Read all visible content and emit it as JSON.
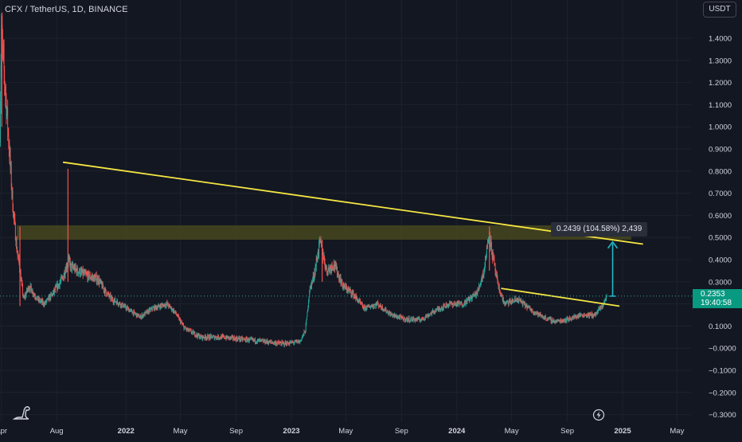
{
  "header": {
    "title": "CFX / TetherUS, 1D, BINANCE",
    "currency_label": "USDT"
  },
  "price_tag": {
    "price": "0.2353",
    "countdown": "19:40:58"
  },
  "measure_label": "0.2439 (104.58%) 2,439",
  "colors": {
    "background": "#131722",
    "up": "#26a69a",
    "down": "#ef5350",
    "trendline": "#f5e642",
    "zone_fill": "#4a4a1e",
    "measure": "#22b8c4",
    "grid": "#1e222d",
    "axis_text": "#d1d4dc"
  },
  "icons": {
    "logo": "dinosaur-logo-icon",
    "replay": "lightning-replay-icon"
  },
  "chart_data": {
    "type": "candlestick",
    "title": "CFX / TetherUS, 1D, BINANCE",
    "interval": "1D",
    "y_axis_position": "right",
    "ylim": [
      -0.33,
      1.5
    ],
    "y_ticks": [
      1.4,
      1.3,
      1.2,
      1.1,
      1.0,
      0.9,
      0.8,
      0.7,
      0.6,
      0.5,
      0.4,
      0.3,
      0.2,
      0.1,
      -0.0,
      -0.1,
      -0.2,
      -0.3
    ],
    "y_tick_labels": [
      "1.4000",
      "1.3000",
      "1.2000",
      "1.1000",
      "1.0000",
      "0.9000",
      "0.8000",
      "0.7000",
      "0.6000",
      "0.5000",
      "0.4000",
      "0.3000",
      "0.2000",
      "0.1000",
      "−0.0000",
      "−0.1000",
      "−0.2000",
      "−0.3000"
    ],
    "x_ticks": [
      {
        "label": "Apr",
        "date": "2021-04-01",
        "bold": false
      },
      {
        "label": "Aug",
        "date": "2021-08-01",
        "bold": false
      },
      {
        "label": "2022",
        "date": "2022-01-01",
        "bold": true
      },
      {
        "label": "May",
        "date": "2022-05-01",
        "bold": false
      },
      {
        "label": "Sep",
        "date": "2022-09-01",
        "bold": false
      },
      {
        "label": "2023",
        "date": "2023-01-01",
        "bold": true
      },
      {
        "label": "May",
        "date": "2023-05-01",
        "bold": false
      },
      {
        "label": "Sep",
        "date": "2023-09-01",
        "bold": false
      },
      {
        "label": "2024",
        "date": "2024-01-01",
        "bold": true
      },
      {
        "label": "May",
        "date": "2024-05-01",
        "bold": false
      },
      {
        "label": "Sep",
        "date": "2024-09-01",
        "bold": false
      },
      {
        "label": "2025",
        "date": "2025-01-01",
        "bold": true
      },
      {
        "label": "May",
        "date": "2025-05-01",
        "bold": false
      }
    ],
    "x_range": [
      "2021-03-29",
      "2025-06-01"
    ],
    "price_path": [
      [
        "2021-03-29",
        1.0
      ],
      [
        "2021-04-01",
        1.45
      ],
      [
        "2021-04-05",
        1.3
      ],
      [
        "2021-04-12",
        1.1
      ],
      [
        "2021-04-20",
        0.85
      ],
      [
        "2021-04-26",
        0.65
      ],
      [
        "2021-05-05",
        0.45
      ],
      [
        "2021-05-12",
        0.35
      ],
      [
        "2021-05-20",
        0.22
      ],
      [
        "2021-06-01",
        0.28
      ],
      [
        "2021-06-20",
        0.22
      ],
      [
        "2021-07-05",
        0.2
      ],
      [
        "2021-07-25",
        0.25
      ],
      [
        "2021-08-15",
        0.32
      ],
      [
        "2021-08-27",
        0.4
      ],
      [
        "2021-09-01",
        0.37
      ],
      [
        "2021-09-15",
        0.35
      ],
      [
        "2021-10-05",
        0.33
      ],
      [
        "2021-11-01",
        0.31
      ],
      [
        "2021-11-15",
        0.26
      ],
      [
        "2021-12-01",
        0.22
      ],
      [
        "2021-12-20",
        0.2
      ],
      [
        "2022-01-10",
        0.17
      ],
      [
        "2022-02-01",
        0.14
      ],
      [
        "2022-03-01",
        0.18
      ],
      [
        "2022-04-01",
        0.2
      ],
      [
        "2022-04-20",
        0.16
      ],
      [
        "2022-05-10",
        0.09
      ],
      [
        "2022-06-15",
        0.05
      ],
      [
        "2022-08-01",
        0.05
      ],
      [
        "2022-09-15",
        0.04
      ],
      [
        "2022-11-01",
        0.03
      ],
      [
        "2022-12-15",
        0.02
      ],
      [
        "2023-01-20",
        0.03
      ],
      [
        "2023-02-01",
        0.08
      ],
      [
        "2023-02-10",
        0.26
      ],
      [
        "2023-02-20",
        0.33
      ],
      [
        "2023-03-05",
        0.48
      ],
      [
        "2023-03-20",
        0.35
      ],
      [
        "2023-04-05",
        0.38
      ],
      [
        "2023-04-25",
        0.28
      ],
      [
        "2023-05-15",
        0.25
      ],
      [
        "2023-06-10",
        0.18
      ],
      [
        "2023-07-10",
        0.2
      ],
      [
        "2023-08-10",
        0.15
      ],
      [
        "2023-09-10",
        0.13
      ],
      [
        "2023-10-15",
        0.13
      ],
      [
        "2023-11-15",
        0.17
      ],
      [
        "2023-12-15",
        0.2
      ],
      [
        "2024-01-15",
        0.2
      ],
      [
        "2024-02-15",
        0.25
      ],
      [
        "2024-03-01",
        0.35
      ],
      [
        "2024-03-12",
        0.52
      ],
      [
        "2024-03-20",
        0.42
      ],
      [
        "2024-04-01",
        0.28
      ],
      [
        "2024-04-15",
        0.2
      ],
      [
        "2024-05-15",
        0.22
      ],
      [
        "2024-06-15",
        0.17
      ],
      [
        "2024-07-10",
        0.14
      ],
      [
        "2024-08-05",
        0.12
      ],
      [
        "2024-09-01",
        0.13
      ],
      [
        "2024-10-01",
        0.15
      ],
      [
        "2024-11-01",
        0.15
      ],
      [
        "2024-11-20",
        0.2
      ],
      [
        "2024-11-27",
        0.2353
      ]
    ],
    "spikes": [
      {
        "date": "2021-04-02",
        "high": 1.5,
        "low": 1.0
      },
      {
        "date": "2021-05-12",
        "high": 0.55,
        "low": 0.19
      },
      {
        "date": "2021-08-26",
        "high": 0.81,
        "low": 0.3
      },
      {
        "date": "2023-03-10",
        "high": 0.49,
        "low": 0.3
      },
      {
        "date": "2024-03-13",
        "high": 0.55,
        "low": 0.35
      }
    ],
    "annotations": {
      "trendline_upper": {
        "from": [
          "2021-08-15",
          0.84
        ],
        "to": [
          "2025-02-15",
          0.47
        ],
        "color": "#f5e642"
      },
      "trendline_lower": {
        "from": [
          "2024-04-08",
          0.27
        ],
        "to": [
          "2024-12-25",
          0.19
        ],
        "color": "#f5e642"
      },
      "resistance_zone": {
        "date_from": "2021-05-05",
        "date_to": "2025-01-20",
        "price_low": 0.49,
        "price_high": 0.555
      },
      "price_line": {
        "price": 0.2353,
        "color": "#26a69a"
      },
      "measure": {
        "date": "2024-12-10",
        "from": 0.2353,
        "to": 0.48,
        "label": "0.2439 (104.58%) 2,439"
      }
    },
    "last_price": 0.2353
  }
}
